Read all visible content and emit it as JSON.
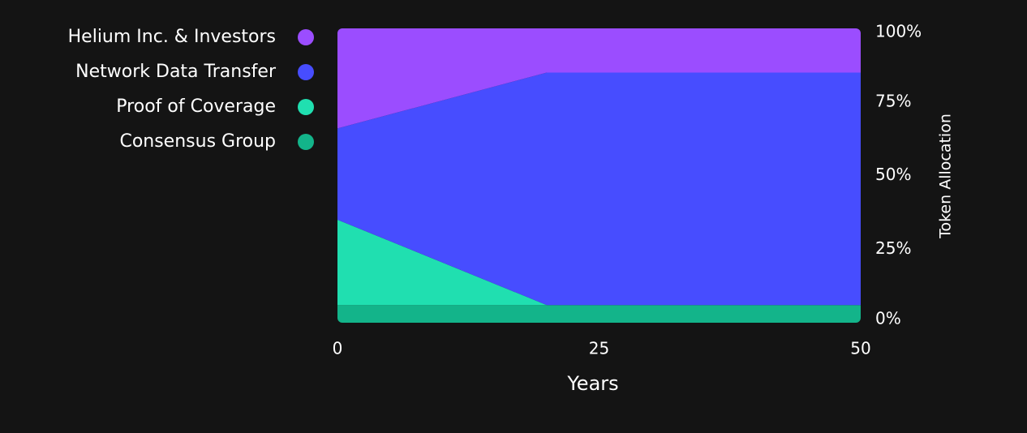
{
  "chart_data": {
    "type": "stacked-area",
    "x": [
      0,
      20,
      50
    ],
    "series": [
      {
        "name": "Helium Inc. & Investors",
        "color": "#9b4dff",
        "values": [
          34,
          15,
          15
        ]
      },
      {
        "name": "Network Data Transfer",
        "color": "#474dff",
        "values": [
          31,
          79,
          79
        ]
      },
      {
        "name": "Proof of Coverage",
        "color": "#20dfb0",
        "values": [
          29,
          0,
          0
        ]
      },
      {
        "name": "Consensus Group",
        "color": "#13b48a",
        "values": [
          6,
          6,
          6
        ]
      }
    ],
    "xlim": [
      0,
      50
    ],
    "xticks": [
      0,
      25,
      50
    ],
    "ylim": [
      0,
      100
    ],
    "yticks": [
      {
        "value": 0,
        "label": "0%"
      },
      {
        "value": 25,
        "label": "25%"
      },
      {
        "value": 50,
        "label": "50%"
      },
      {
        "value": 75,
        "label": "75%"
      },
      {
        "value": 100,
        "label": "100%"
      }
    ],
    "xlabel": "Years",
    "ylabel": "Token Allocation",
    "legend": "left"
  }
}
